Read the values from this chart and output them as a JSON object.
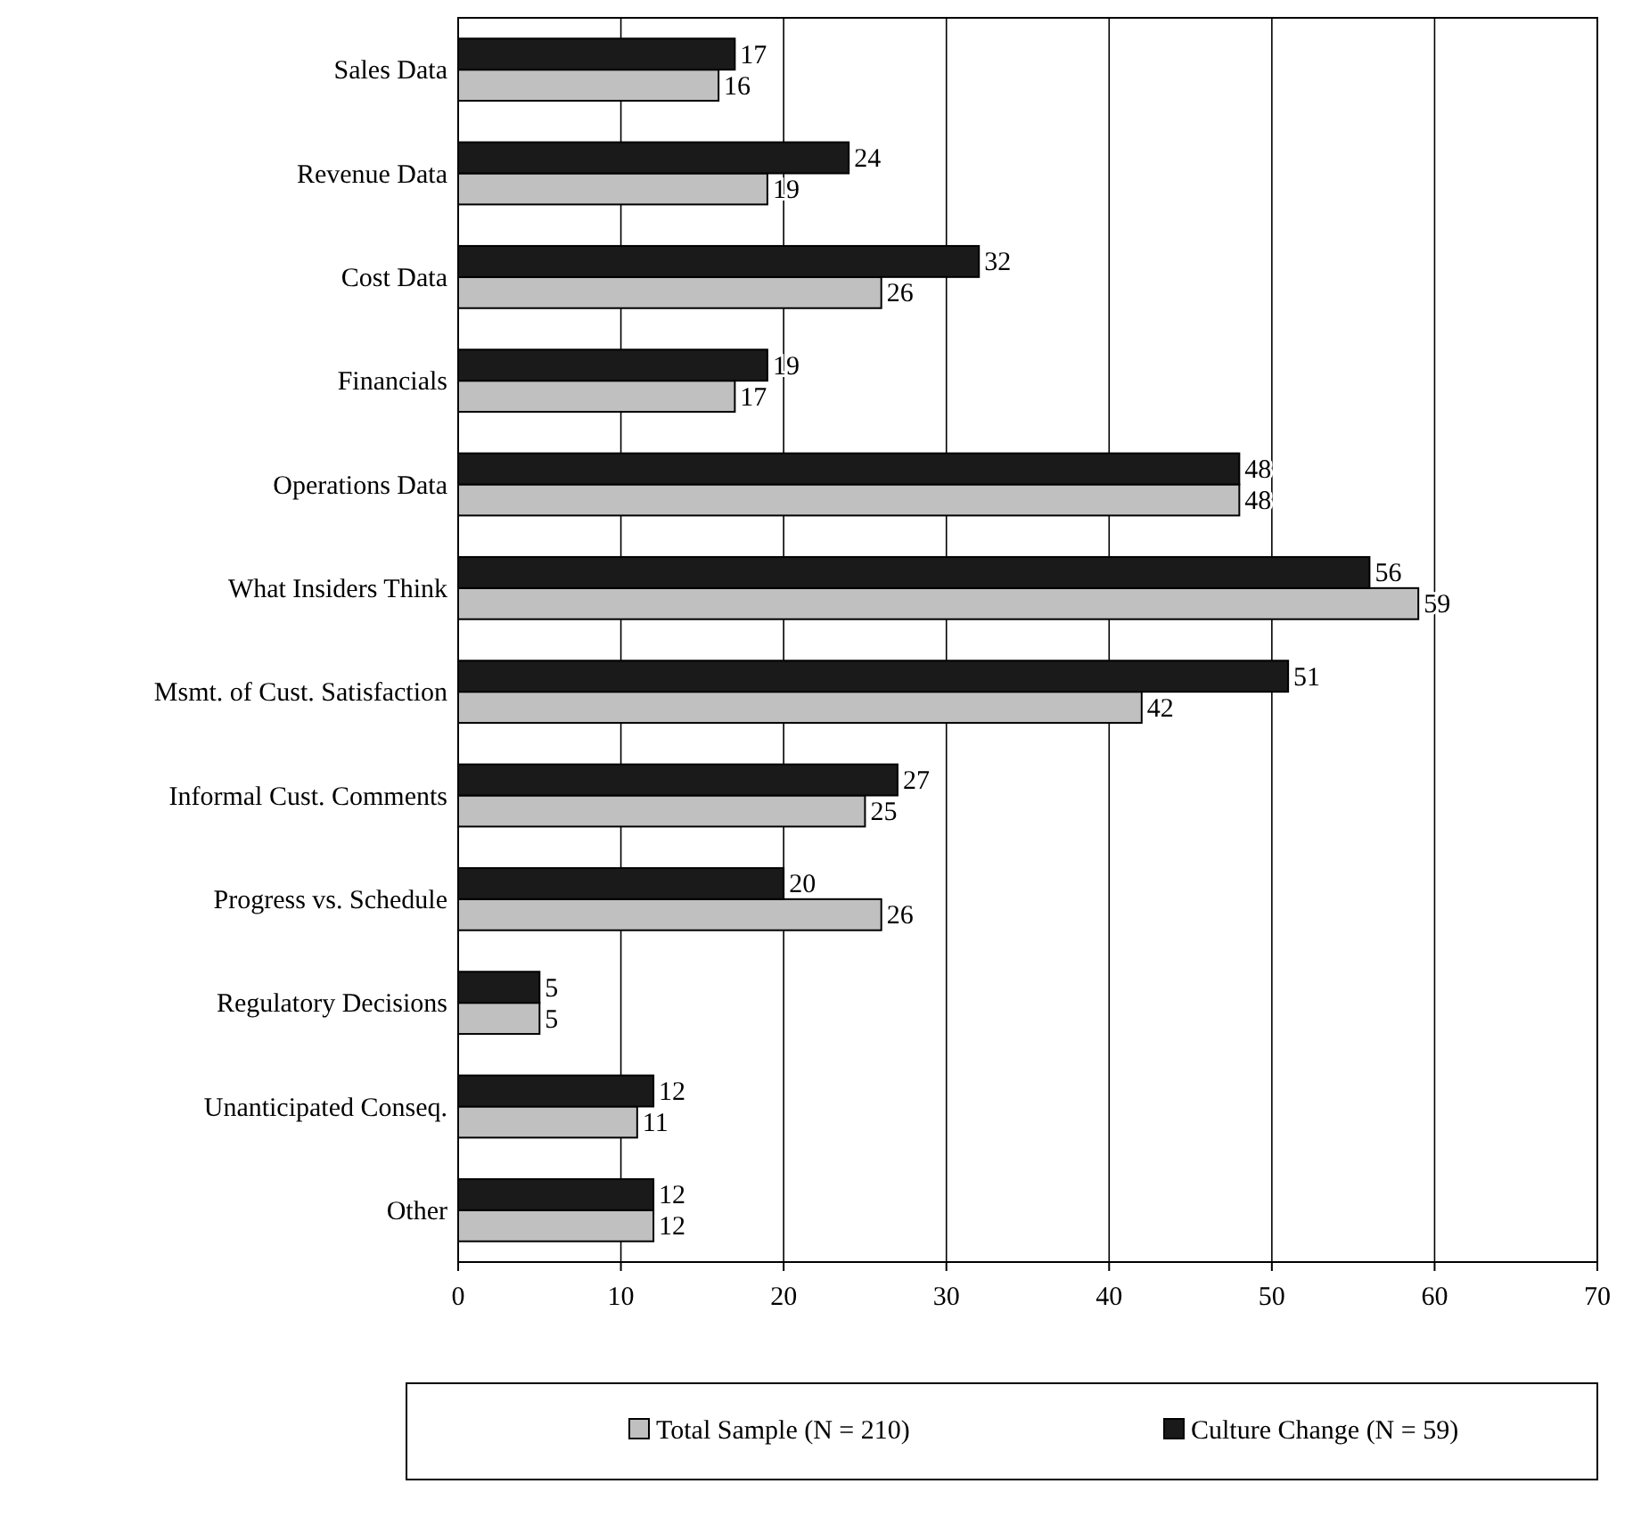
{
  "chart_data": {
    "type": "bar",
    "orientation": "horizontal",
    "categories": [
      "Sales Data",
      "Revenue Data",
      "Cost Data",
      "Financials",
      "Operations Data",
      "What Insiders Think",
      "Msmt. of Cust. Satisfaction",
      "Informal Cust. Comments",
      "Progress vs. Schedule",
      "Regulatory Decisions",
      "Unanticipated Conseq.",
      "Other"
    ],
    "series": [
      {
        "name": "Total Sample (N = 210)",
        "color": "#c0c0c0",
        "values": [
          16,
          19,
          26,
          17,
          48,
          59,
          42,
          25,
          26,
          5,
          11,
          12
        ]
      },
      {
        "name": "Culture Change (N = 59)",
        "color": "#1a1a1a",
        "values": [
          17,
          24,
          32,
          19,
          48,
          56,
          51,
          27,
          20,
          5,
          12,
          12
        ]
      }
    ],
    "xlim": [
      0,
      70
    ],
    "xticks": [
      0,
      10,
      20,
      30,
      40,
      50,
      60,
      70
    ],
    "grid": "x",
    "legend": "bottom",
    "data_labels": true
  }
}
